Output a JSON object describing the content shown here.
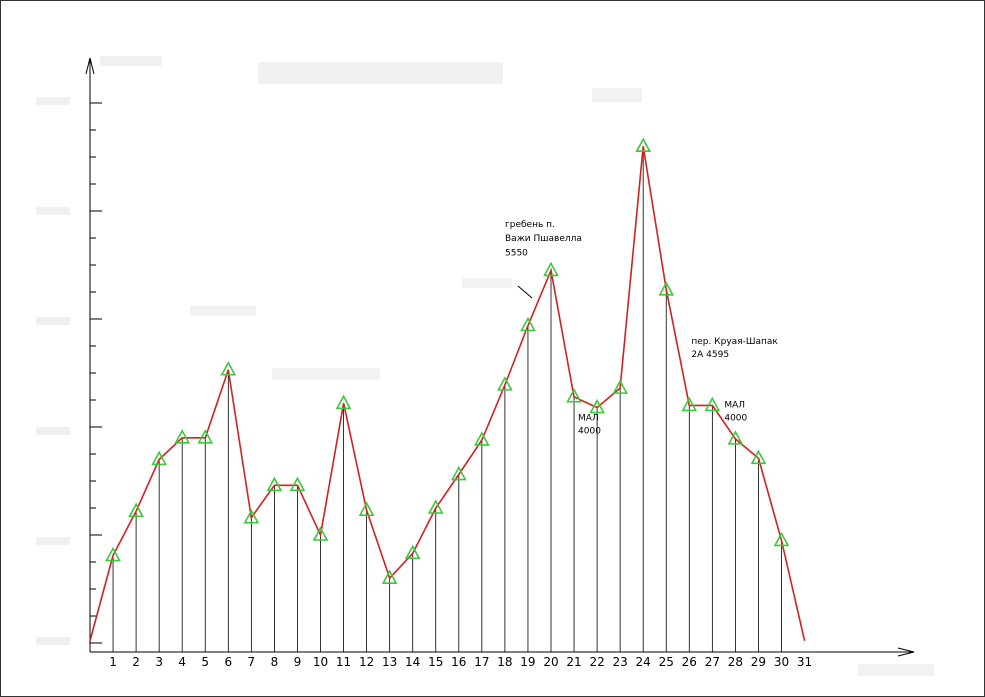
{
  "chart_data": {
    "type": "line",
    "x": [
      0,
      1,
      2,
      3,
      4,
      5,
      6,
      7,
      8,
      9,
      10,
      11,
      12,
      13,
      14,
      15,
      16,
      17,
      18,
      19,
      20,
      21,
      22,
      23,
      24,
      25,
      26,
      27,
      28,
      29,
      30,
      31
    ],
    "xticklabels": [
      "1",
      "2",
      "3",
      "4",
      "5",
      "6",
      "7",
      "8",
      "9",
      "10",
      "11",
      "12",
      "13",
      "14",
      "15",
      "16",
      "17",
      "18",
      "19",
      "20",
      "21",
      "22",
      "23",
      "24",
      "25",
      "26",
      "27",
      "28",
      "29",
      "30",
      "31"
    ],
    "ylim": [
      2500,
      7500
    ],
    "series": [
      {
        "values": [
          2520,
          3310,
          3720,
          4200,
          4400,
          4400,
          5030,
          3660,
          3960,
          3960,
          3500,
          4720,
          3730,
          3100,
          3330,
          3750,
          4060,
          4380,
          4890,
          5440,
          5950,
          4780,
          4680,
          4860,
          7100,
          5770,
          4700,
          4700,
          4390,
          4210,
          3450,
          2520
        ],
        "color": "#d42020"
      }
    ],
    "markers": {
      "x": [
        1,
        2,
        3,
        4,
        5,
        6,
        7,
        8,
        9,
        10,
        11,
        12,
        13,
        14,
        15,
        16,
        17,
        18,
        19,
        20,
        21,
        22,
        23,
        24,
        25,
        26,
        27,
        28,
        29,
        30
      ],
      "color": "#3cc83c"
    },
    "annotations": [
      {
        "text": "гребень п.",
        "x": 20,
        "y": 6350
      },
      {
        "text": "Важи Пшавелла",
        "x": 20,
        "y": 6220
      },
      {
        "text": "5550",
        "x": 20,
        "y": 6090
      },
      {
        "text": "пер. Круая-Шапак",
        "x": 28,
        "y": 5270
      },
      {
        "text": "2А   4595",
        "x": 28,
        "y": 5150
      },
      {
        "text": "МАЛ",
        "x": 21,
        "y": 4560
      },
      {
        "text": "4000",
        "x": 21,
        "y": 4440
      },
      {
        "text": "МАЛ",
        "x": 27,
        "y": 4680
      },
      {
        "text": "4000",
        "x": 27,
        "y": 4560
      }
    ],
    "grid": false,
    "legend": "none"
  }
}
